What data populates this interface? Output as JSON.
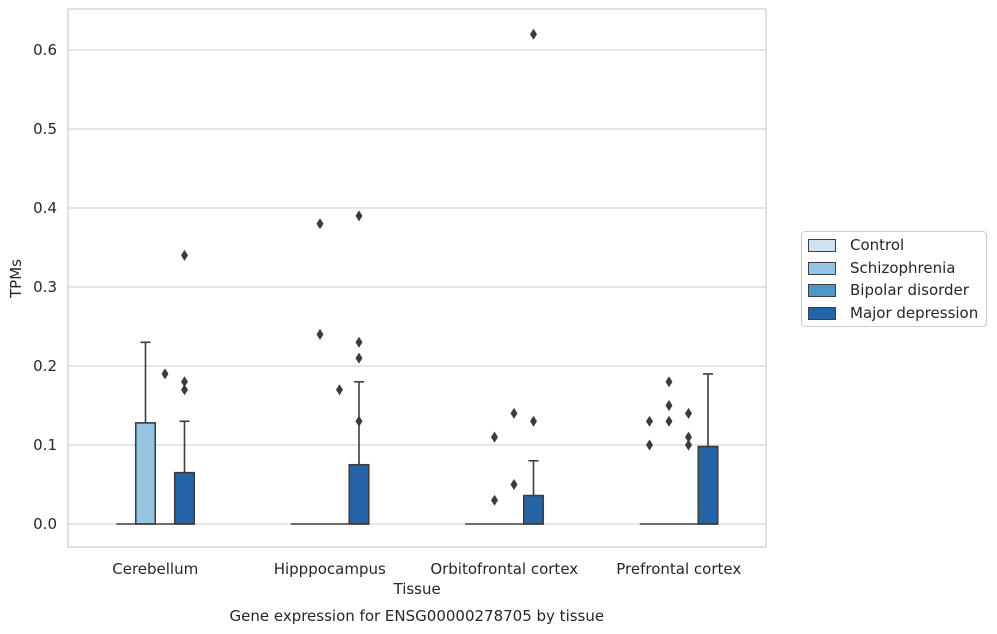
{
  "chart_data": {
    "type": "box",
    "title": "",
    "caption": "Gene expression for ENSG00000278705 by tissue",
    "xlabel": "Tissue",
    "ylabel": "TPMs",
    "ylim": [
      -0.03,
      0.655
    ],
    "yticks": [
      "0.0",
      "0.1",
      "0.2",
      "0.3",
      "0.4",
      "0.5",
      "0.6"
    ],
    "grid": "horizontal",
    "legend_position": "right",
    "categories": [
      "Cerebellum",
      "Hipppocampus",
      "Orbitofrontal cortex",
      "Prefrontal cortex"
    ],
    "series": [
      {
        "name": "Control",
        "color": "#d0e1f2",
        "boxes": [
          {
            "q1": 0,
            "median": 0,
            "q3": 0,
            "whisker_low": 0,
            "whisker_high": 0,
            "outliers": []
          },
          {
            "q1": 0,
            "median": 0,
            "q3": 0,
            "whisker_low": 0,
            "whisker_high": 0,
            "outliers": []
          },
          {
            "q1": 0,
            "median": 0,
            "q3": 0,
            "whisker_low": 0,
            "whisker_high": 0,
            "outliers": []
          },
          {
            "q1": 0,
            "median": 0,
            "q3": 0,
            "whisker_low": 0,
            "whisker_high": 0,
            "outliers": [
              0.1,
              0.13
            ]
          }
        ]
      },
      {
        "name": "Schizophrenia",
        "color": "#94c4df",
        "boxes": [
          {
            "q1": 0,
            "median": 0,
            "q3": 0.128,
            "whisker_low": 0,
            "whisker_high": 0.23,
            "outliers": []
          },
          {
            "q1": 0,
            "median": 0,
            "q3": 0,
            "whisker_low": 0,
            "whisker_high": 0,
            "outliers": [
              0.24,
              0.38
            ]
          },
          {
            "q1": 0,
            "median": 0,
            "q3": 0,
            "whisker_low": 0,
            "whisker_high": 0,
            "outliers": [
              0.03,
              0.11
            ]
          },
          {
            "q1": 0,
            "median": 0,
            "q3": 0,
            "whisker_low": 0,
            "whisker_high": 0,
            "outliers": [
              0.13,
              0.15,
              0.18
            ]
          }
        ]
      },
      {
        "name": "Bipolar disorder",
        "color": "#4a98c9",
        "boxes": [
          {
            "q1": 0,
            "median": 0,
            "q3": 0,
            "whisker_low": 0,
            "whisker_high": 0,
            "outliers": [
              0.19
            ]
          },
          {
            "q1": 0,
            "median": 0,
            "q3": 0,
            "whisker_low": 0,
            "whisker_high": 0,
            "outliers": [
              0.17
            ]
          },
          {
            "q1": 0,
            "median": 0,
            "q3": 0,
            "whisker_low": 0,
            "whisker_high": 0,
            "outliers": [
              0.05,
              0.14
            ]
          },
          {
            "q1": 0,
            "median": 0,
            "q3": 0,
            "whisker_low": 0,
            "whisker_high": 0,
            "outliers": [
              0.1,
              0.11,
              0.14
            ]
          }
        ]
      },
      {
        "name": "Major depression",
        "color": "#2463a6",
        "boxes": [
          {
            "q1": 0,
            "median": 0,
            "q3": 0.065,
            "whisker_low": 0,
            "whisker_high": 0.13,
            "outliers": [
              0.17,
              0.18,
              0.34
            ]
          },
          {
            "q1": 0,
            "median": 0,
            "q3": 0.075,
            "whisker_low": 0,
            "whisker_high": 0.18,
            "outliers": [
              0.13,
              0.21,
              0.23,
              0.39
            ]
          },
          {
            "q1": 0,
            "median": 0,
            "q3": 0.036,
            "whisker_low": 0,
            "whisker_high": 0.08,
            "outliers": [
              0.13,
              0.62
            ]
          },
          {
            "q1": 0,
            "median": 0,
            "q3": 0.098,
            "whisker_low": 0,
            "whisker_high": 0.19,
            "outliers": []
          }
        ]
      }
    ],
    "outlier_marker_color": "#3b3b3b"
  },
  "legend": {
    "items": [
      "Control",
      "Schizophrenia",
      "Bipolar disorder",
      "Major depression"
    ]
  }
}
